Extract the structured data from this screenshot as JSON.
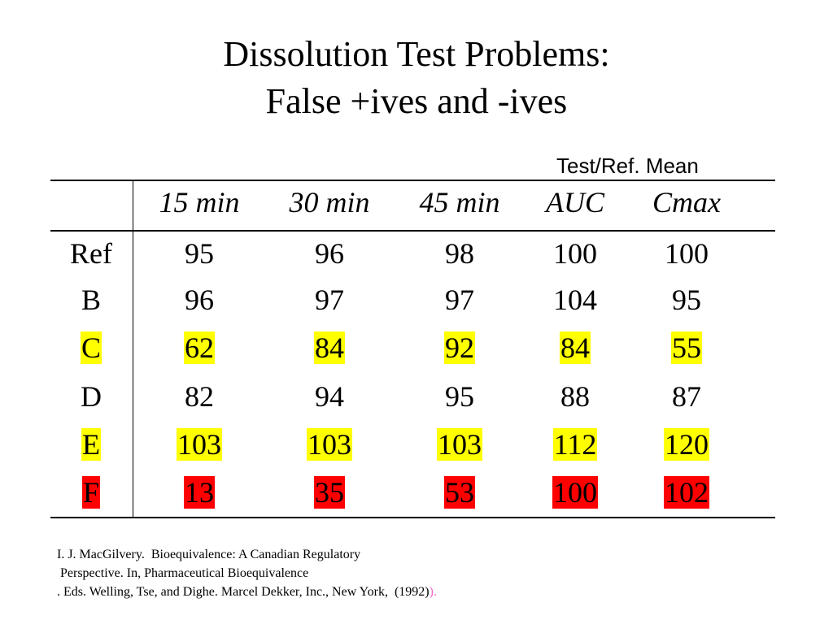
{
  "title": {
    "line1": "Dissolution Test Problems:",
    "line2": "False +ives and -ives"
  },
  "subheader": "Test/Ref. Mean",
  "table": {
    "headers": [
      "15 min",
      "30 min",
      "45 min",
      "AUC",
      "Cmax"
    ],
    "rows": [
      {
        "label": "Ref",
        "values": [
          "95",
          "96",
          "98",
          "100",
          "100"
        ],
        "highlight": "none"
      },
      {
        "label": "B",
        "values": [
          "96",
          "97",
          "97",
          "104",
          "95"
        ],
        "highlight": "none"
      },
      {
        "label": "C",
        "values": [
          "62",
          "84",
          "92",
          "84",
          "55"
        ],
        "highlight": "yellow"
      },
      {
        "label": "D",
        "values": [
          "82",
          "94",
          "95",
          "88",
          "87"
        ],
        "highlight": "none"
      },
      {
        "label": "E",
        "values": [
          "103",
          "103",
          "103",
          "112",
          "120"
        ],
        "highlight": "yellow"
      },
      {
        "label": "F",
        "values": [
          "13",
          "35",
          "53",
          "100",
          "102"
        ],
        "highlight": "red"
      }
    ]
  },
  "highlight_colors": {
    "yellow": "#ffff00",
    "red": "#ff0000"
  },
  "reference": {
    "line1": "I. J. MacGilvery.  Bioequivalence: A Canadian Regulatory",
    "line2": " Perspective. In, Pharmaceutical Bioequivalence",
    "line3": ". Eds. Welling, Tse, and Dighe. Marcel Dekker, Inc., New York,  (1992)",
    "line3_tail": ")."
  }
}
